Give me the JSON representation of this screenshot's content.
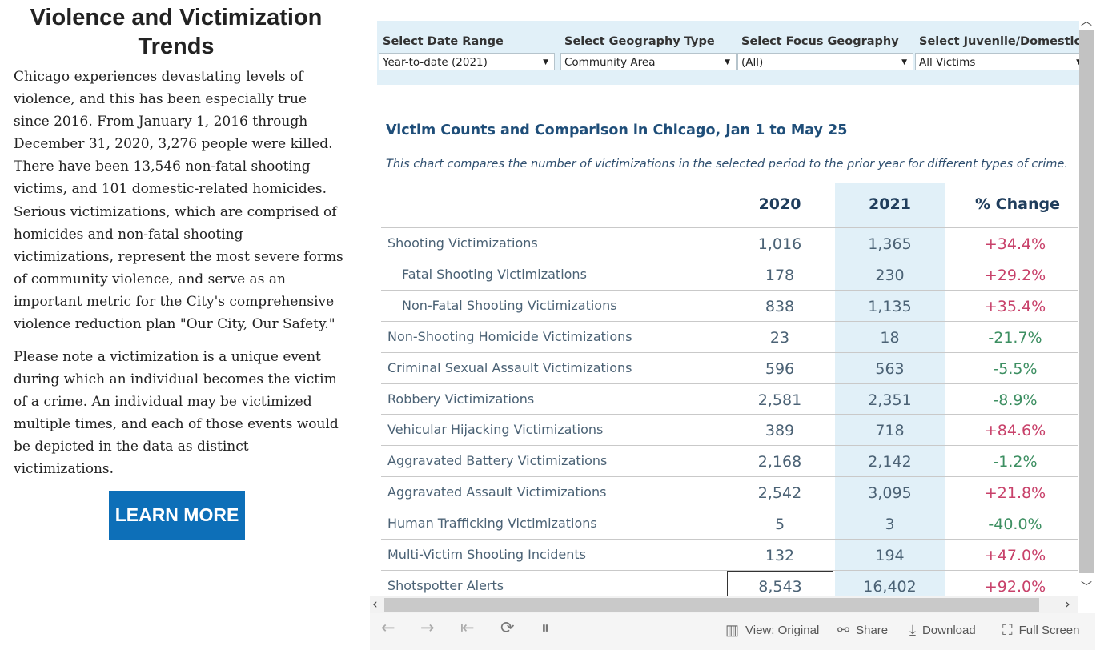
{
  "left": {
    "title": "Violence and Victimization Trends",
    "paragraph1": "Chicago experiences devastating levels of violence, and this has been especially true since 2016. From January 1, 2016 through December 31, 2020, 3,276 people were killed. There have been 13,546 non-fatal shooting victims, and 101 domestic-related homicides. Serious victimizations, which are comprised of homicides and non-fatal shooting victimizations, represent the most severe forms of community violence, and serve as an important metric for the City's comprehensive violence reduction plan \"Our City, Our Safety.\"",
    "paragraph2": "Please note a victimization is a unique event during which an individual becomes the victim of a crime. An individual may be victimized multiple times, and each of those events would be depicted in the data as distinct victimizations.",
    "button": "LEARN MORE"
  },
  "filters": [
    {
      "label": "Select Date Range",
      "value": "Year-to-date (2021)"
    },
    {
      "label": "Select Geography Type",
      "value": "Community Area"
    },
    {
      "label": "Select Focus Geography",
      "value": "(All)"
    },
    {
      "label": "Select Juvenile/Domestic",
      "value": "All Victims"
    }
  ],
  "table": {
    "title": "Victim Counts and Comparison in Chicago, Jan 1 to May 25",
    "subtitle": "This chart compares the number of victimizations in the selected period to the prior year for different types of crime.",
    "headers": [
      "2020",
      "2021",
      "% Change"
    ],
    "rows": [
      {
        "name": "Shooting Victimizations",
        "y2020": "1,016",
        "y2021": "1,365",
        "change": "+34.4%"
      },
      {
        "name": "Fatal Shooting Victimizations",
        "y2020": "178",
        "y2021": "230",
        "change": "+29.2%"
      },
      {
        "name": "Non-Fatal Shooting Victimizations",
        "y2020": "838",
        "y2021": "1,135",
        "change": "+35.4%"
      },
      {
        "name": "Non-Shooting Homicide Victimizations",
        "y2020": "23",
        "y2021": "18",
        "change": "-21.7%"
      },
      {
        "name": "Criminal Sexual Assault Victimizations",
        "y2020": "596",
        "y2021": "563",
        "change": "-5.5%"
      },
      {
        "name": "Robbery Victimizations",
        "y2020": "2,581",
        "y2021": "2,351",
        "change": "-8.9%"
      },
      {
        "name": "Vehicular Hijacking Victimizations",
        "y2020": "389",
        "y2021": "718",
        "change": "+84.6%"
      },
      {
        "name": "Aggravated Battery Victimizations",
        "y2020": "2,168",
        "y2021": "2,142",
        "change": "-1.2%"
      },
      {
        "name": "Aggravated Assault Victimizations",
        "y2020": "2,542",
        "y2021": "3,095",
        "change": "+21.8%"
      },
      {
        "name": "Human Trafficking Victimizations",
        "y2020": "5",
        "y2021": "3",
        "change": "-40.0%"
      },
      {
        "name": "Multi-Victim Shooting Incidents",
        "y2020": "132",
        "y2021": "194",
        "change": "+47.0%"
      },
      {
        "name": "Shotspotter Alerts",
        "y2020": "8,543",
        "y2021": "16,402",
        "change": "+92.0%"
      }
    ]
  },
  "toolbar": {
    "view": "View: Original",
    "share": "Share",
    "download": "Download",
    "fullscreen": "Full Screen"
  },
  "colors": {
    "positive": "#c8416a",
    "negative": "#3d8f62",
    "highlight": "#e1f0f8",
    "button": "#0d6fb8"
  }
}
